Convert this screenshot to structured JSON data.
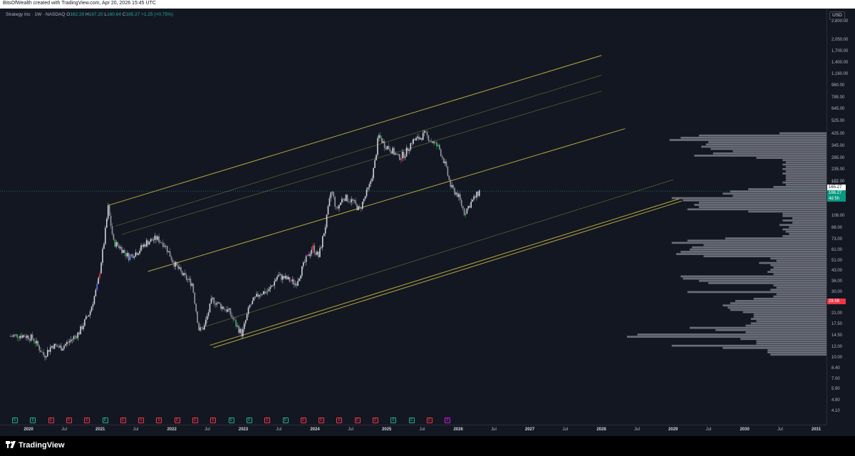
{
  "header": {
    "credit": "BitsOfWealth created with TradingView.com, Apr 20, 2026 15:45 UTC"
  },
  "legend": {
    "symbol": "Strategy Inc · 1W · NASDAQ",
    "open_label": "O",
    "open": "162.29",
    "high_label": "H",
    "high": "167.20",
    "low_label": "L",
    "low": "160.64",
    "close_label": "C",
    "close": "165.27",
    "change": "+1.25 (+0.75%)"
  },
  "currency_button": "USD",
  "price_axis": {
    "ticks": [
      "2,800.00",
      "2,050.00",
      "1,700.00",
      "1,400.00",
      "1,160.00",
      "960.00",
      "785.00",
      "645.00",
      "525.00",
      "425.00",
      "345.00",
      "285.00",
      "235.00",
      "192.00",
      "108.00",
      "88.00",
      "73.00",
      "61.00",
      "51.00",
      "43.00",
      "36.00",
      "30.00",
      "25.00",
      "21.00",
      "17.50",
      "14.50",
      "12.00",
      "10.00",
      "8.40",
      "7.00",
      "5.90",
      "4.90",
      "4.10"
    ],
    "price_pill": "165.27",
    "price_pill_2": "166.27",
    "countdown_pill": "4d 5h",
    "level_pill": "28.58",
    "faint_label": "165"
  },
  "time_axis": {
    "labels": [
      {
        "text": "2020",
        "year": true
      },
      {
        "text": "Jul",
        "year": false
      },
      {
        "text": "2021",
        "year": true
      },
      {
        "text": "Jul",
        "year": false
      },
      {
        "text": "2022",
        "year": true
      },
      {
        "text": "Jul",
        "year": false
      },
      {
        "text": "2023",
        "year": true
      },
      {
        "text": "Jul",
        "year": false
      },
      {
        "text": "2024",
        "year": true
      },
      {
        "text": "Jul",
        "year": false
      },
      {
        "text": "2025",
        "year": true
      },
      {
        "text": "Jul",
        "year": false
      },
      {
        "text": "2026",
        "year": true
      },
      {
        "text": "Jul",
        "year": false
      },
      {
        "text": "2027",
        "year": true
      },
      {
        "text": "Jul",
        "year": false
      },
      {
        "text": "2028",
        "year": true
      },
      {
        "text": "Jul",
        "year": false
      },
      {
        "text": "2029",
        "year": true
      },
      {
        "text": "Jul",
        "year": false
      },
      {
        "text": "2030",
        "year": true
      },
      {
        "text": "Jul",
        "year": false
      },
      {
        "text": "2031",
        "year": true
      }
    ]
  },
  "earnings_markers": {
    "letter": "E",
    "kinds": [
      "green",
      "green",
      "red",
      "red",
      "red",
      "green",
      "red",
      "red",
      "red",
      "red",
      "red",
      "red",
      "green",
      "green",
      "red",
      "green",
      "red",
      "red",
      "red",
      "red",
      "red",
      "green",
      "green",
      "red",
      "purple"
    ]
  },
  "chart_data": {
    "type": "candlestick",
    "symbol": "Strategy Inc",
    "exchange": "NASDAQ",
    "interval": "1W",
    "currency": "USD",
    "y_scale": "log",
    "last_close": 165.27,
    "x_range": [
      "2019-10",
      "2031-01"
    ],
    "ylim": [
      4.1,
      2800
    ],
    "weekly_close_path": [
      [
        "2019-10-01",
        14.5
      ],
      [
        "2019-11-15",
        14.8
      ],
      [
        "2019-12-20",
        14.6
      ],
      [
        "2020-01-25",
        14.0
      ],
      [
        "2020-03-20",
        10.5
      ],
      [
        "2020-05-01",
        12.5
      ],
      [
        "2020-06-15",
        12.0
      ],
      [
        "2020-08-01",
        13.5
      ],
      [
        "2020-09-15",
        15.5
      ],
      [
        "2020-11-10",
        22.0
      ],
      [
        "2020-12-20",
        35.0
      ],
      [
        "2021-01-20",
        70.0
      ],
      [
        "2021-02-10",
        125.0
      ],
      [
        "2021-03-10",
        70.0
      ],
      [
        "2021-04-10",
        65.0
      ],
      [
        "2021-05-25",
        55.0
      ],
      [
        "2021-07-10",
        60.0
      ],
      [
        "2021-08-25",
        70.0
      ],
      [
        "2021-10-15",
        75.0
      ],
      [
        "2021-11-25",
        68.0
      ],
      [
        "2022-01-10",
        50.0
      ],
      [
        "2022-03-01",
        40.0
      ],
      [
        "2022-04-15",
        35.0
      ],
      [
        "2022-05-20",
        16.0
      ],
      [
        "2022-06-15",
        17.0
      ],
      [
        "2022-07-25",
        27.0
      ],
      [
        "2022-09-10",
        24.0
      ],
      [
        "2022-10-20",
        22.0
      ],
      [
        "2022-11-25",
        17.5
      ],
      [
        "2022-12-25",
        15.0
      ],
      [
        "2023-02-01",
        24.0
      ],
      [
        "2023-03-25",
        30.0
      ],
      [
        "2023-05-10",
        31.0
      ],
      [
        "2023-06-25",
        40.0
      ],
      [
        "2023-08-10",
        38.0
      ],
      [
        "2023-09-25",
        35.0
      ],
      [
        "2023-11-10",
        50.0
      ],
      [
        "2023-12-20",
        65.0
      ],
      [
        "2024-01-20",
        55.0
      ],
      [
        "2024-02-25",
        95.0
      ],
      [
        "2024-03-25",
        170.0
      ],
      [
        "2024-04-20",
        120.0
      ],
      [
        "2024-05-25",
        150.0
      ],
      [
        "2024-07-10",
        140.0
      ],
      [
        "2024-08-15",
        120.0
      ],
      [
        "2024-10-05",
        180.0
      ],
      [
        "2024-10-30",
        250.0
      ],
      [
        "2024-11-20",
        420.0
      ],
      [
        "2024-12-20",
        360.0
      ],
      [
        "2025-01-25",
        330.0
      ],
      [
        "2025-03-01",
        290.0
      ],
      [
        "2025-04-05",
        310.0
      ],
      [
        "2025-05-10",
        380.0
      ],
      [
        "2025-06-15",
        400.0
      ],
      [
        "2025-07-15",
        430.0
      ],
      [
        "2025-08-20",
        380.0
      ],
      [
        "2025-09-25",
        340.0
      ],
      [
        "2025-10-25",
        260.0
      ],
      [
        "2025-11-25",
        175.0
      ],
      [
        "2025-12-30",
        155.0
      ],
      [
        "2026-02-01",
        115.0
      ],
      [
        "2026-03-05",
        135.0
      ],
      [
        "2026-04-20",
        165.27
      ]
    ],
    "trend_channel_lines": [
      {
        "from": [
          "2021-02-10",
          130.0
        ],
        "to": [
          "2028-01-01",
          1600.0
        ]
      },
      {
        "from": [
          "2021-03-20",
          92.0
        ],
        "to": [
          "2028-01-01",
          1150.0
        ]
      },
      {
        "from": [
          "2021-04-20",
          80.0
        ],
        "to": [
          "2028-01-01",
          880.0
        ]
      },
      {
        "from": [
          "2021-09-01",
          43.0
        ],
        "to": [
          "2028-05-01",
          470.0
        ]
      },
      {
        "from": [
          "2022-06-15",
          17.0
        ],
        "to": [
          "2029-01-01",
          200.0
        ]
      },
      {
        "from": [
          "2022-07-15",
          12.5
        ],
        "to": [
          "2029-02-01",
          145.0
        ]
      },
      {
        "from": [
          "2022-08-01",
          12.0
        ],
        "to": [
          "2029-02-15",
          140.0
        ]
      }
    ],
    "volume_profile": {
      "side": "right",
      "visible": true
    },
    "grid": false
  },
  "footer": {
    "brand": "TradingView"
  }
}
